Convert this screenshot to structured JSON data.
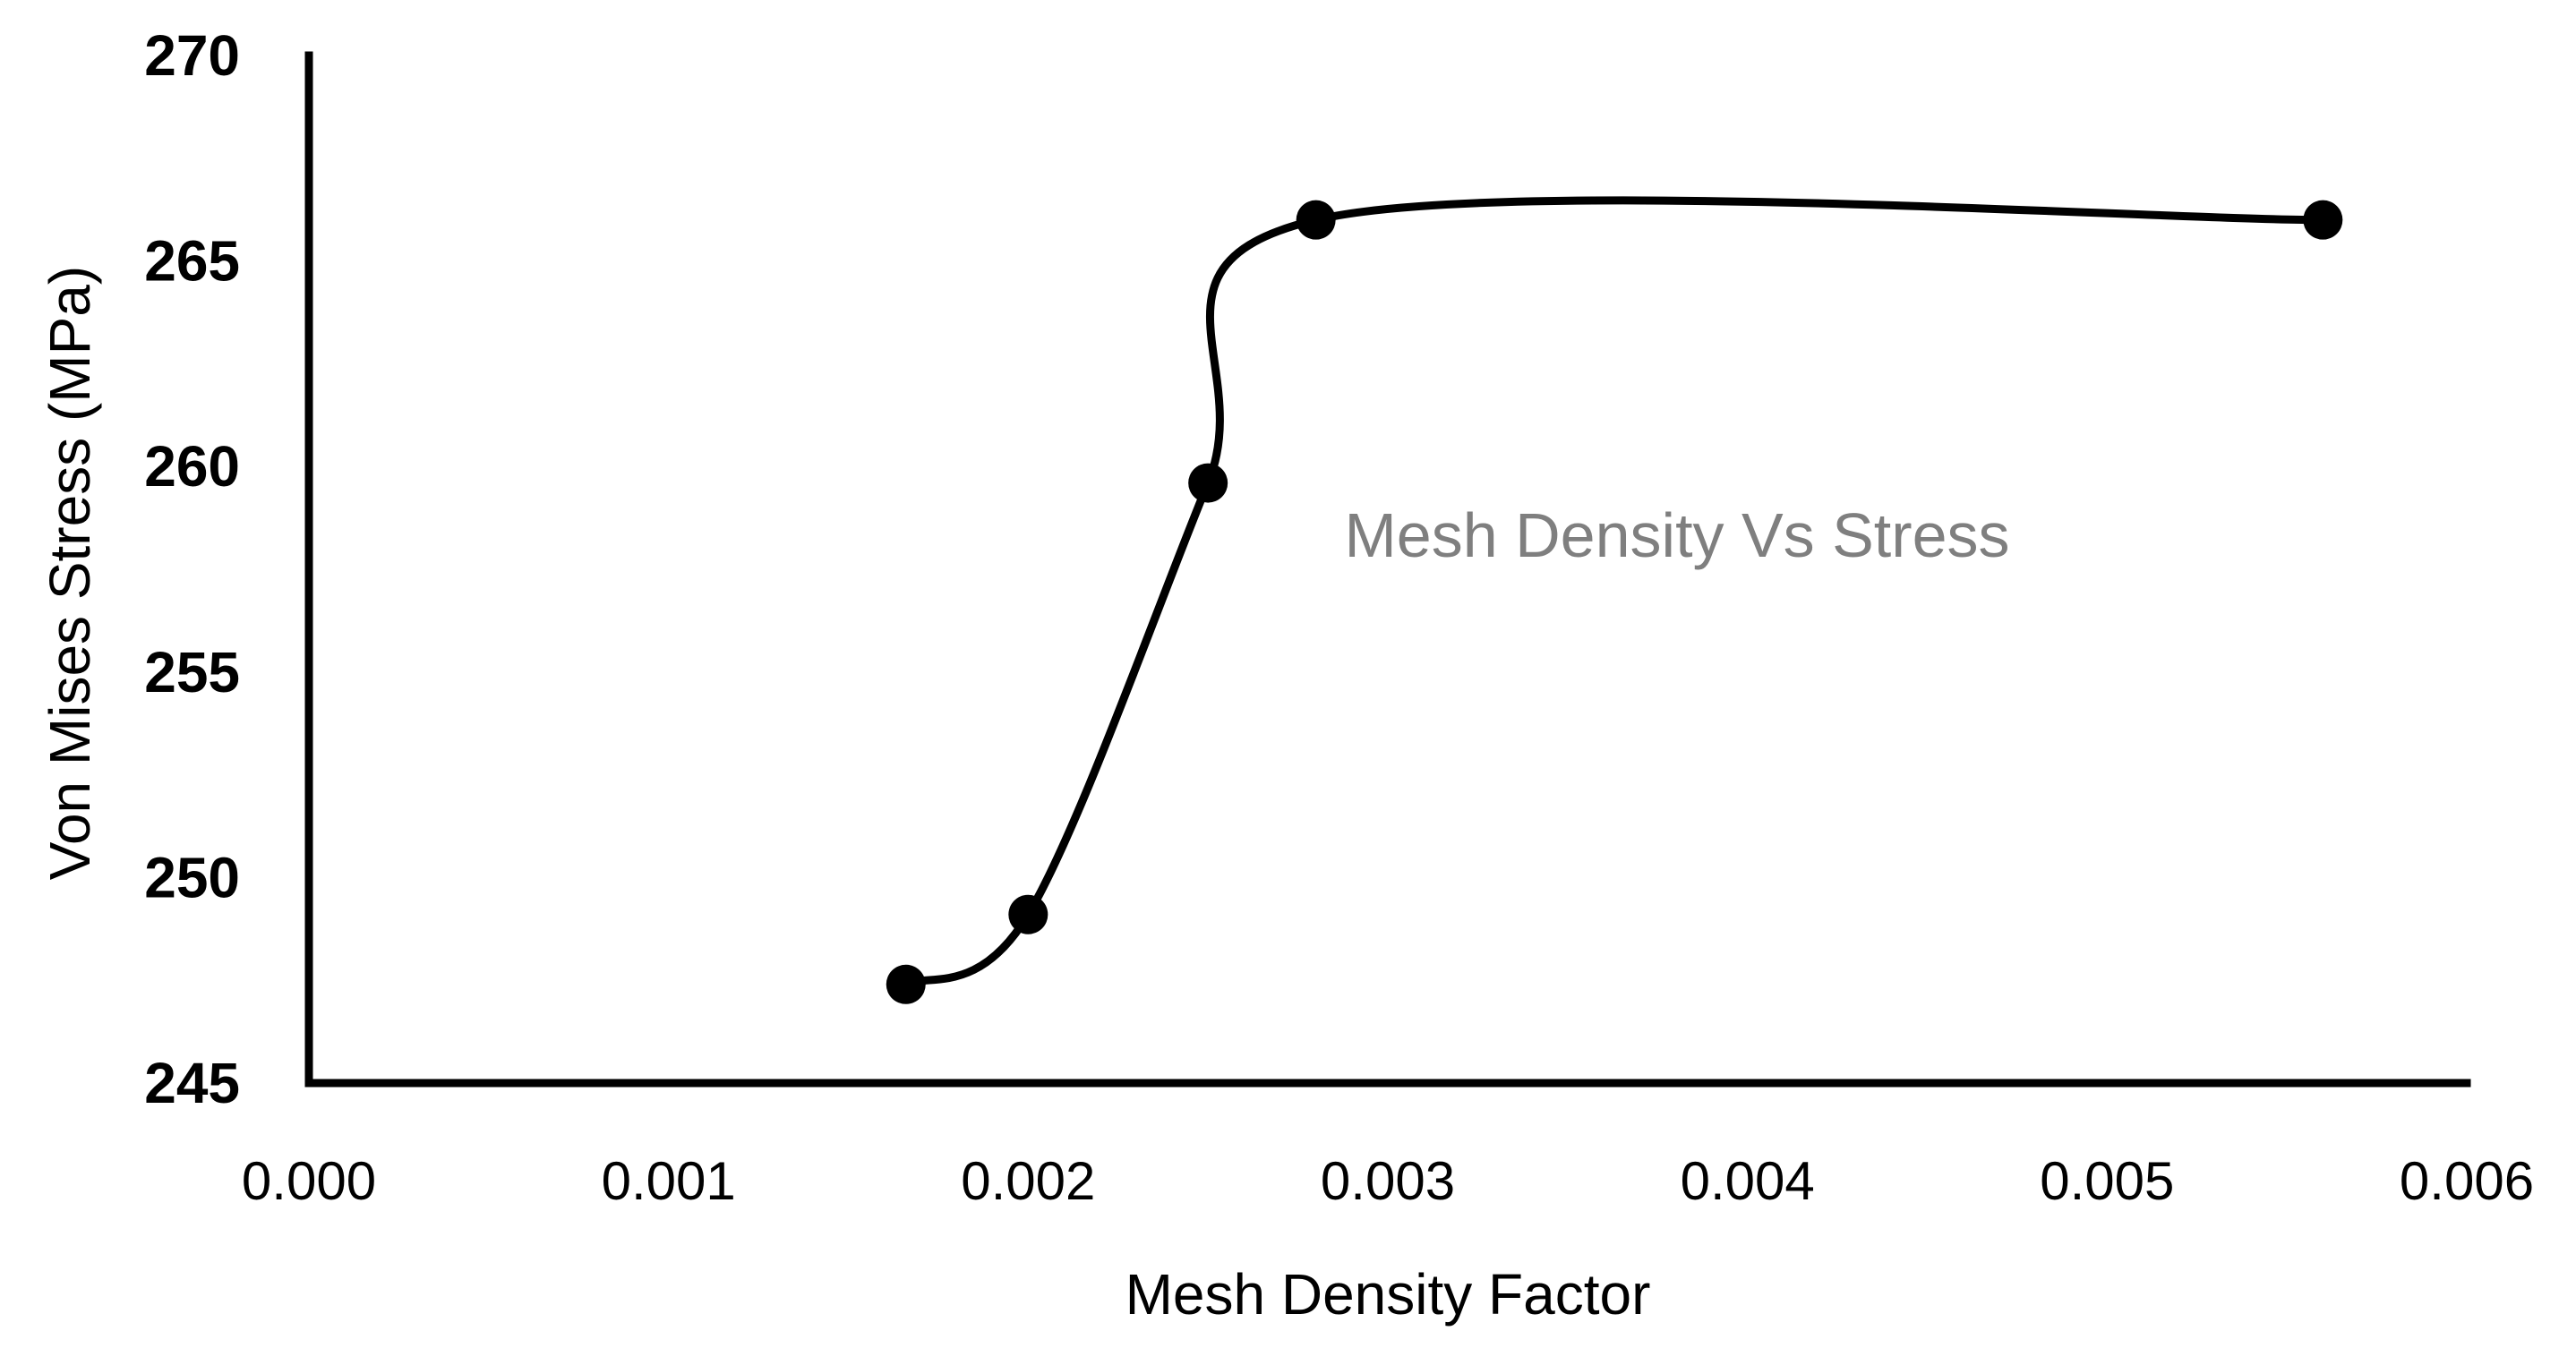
{
  "chart_data": {
    "type": "scatter",
    "title": "Mesh Density Vs Stress",
    "subtitle": "",
    "xlabel": "Mesh Density Factor",
    "ylabel": "Von Mises Stress (MPa)",
    "xlim": [
      0.0,
      0.006
    ],
    "ylim": [
      245,
      270
    ],
    "x_ticks": [
      "0.000",
      "0.001",
      "0.002",
      "0.003",
      "0.004",
      "0.005",
      "0.006"
    ],
    "y_ticks": [
      "245",
      "250",
      "255",
      "260",
      "265",
      "270"
    ],
    "grid": false,
    "legend": "none",
    "smoothed_line": true,
    "series": [
      {
        "x": [
          0.00166,
          0.002,
          0.0025,
          0.0028,
          0.0056
        ],
        "y": [
          247.4,
          249.1,
          259.6,
          266.0,
          266.0
        ]
      }
    ],
    "colors": {
      "series": "#000000",
      "axis": "#000000",
      "title": "#7f7f7f"
    }
  }
}
